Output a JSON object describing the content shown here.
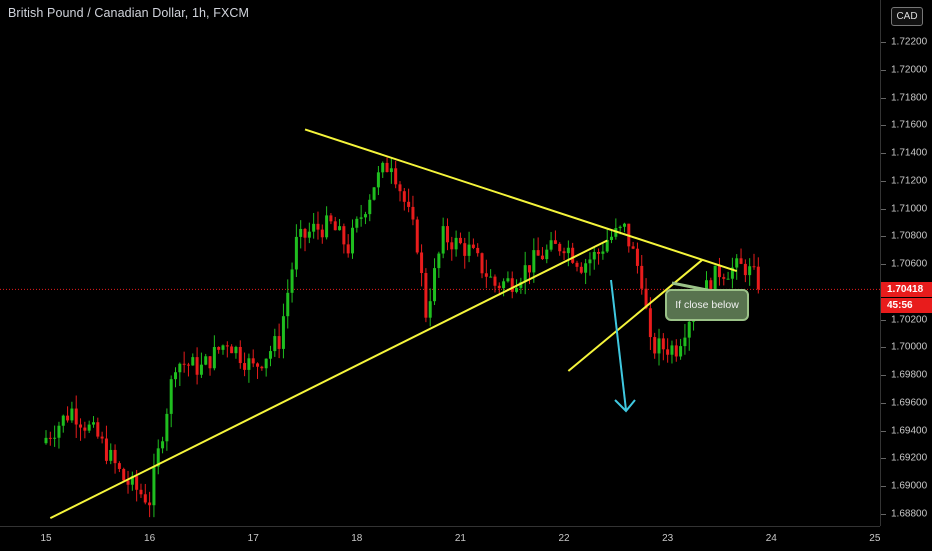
{
  "header": {
    "title": "British Pound / Canadian Dollar, 1h, FXCM"
  },
  "price_axis": {
    "currency": "CAD",
    "labels": [
      "1.72200",
      "1.72000",
      "1.71800",
      "1.71600",
      "1.71400",
      "1.71200",
      "1.71000",
      "1.70800",
      "1.70600",
      "1.70400",
      "1.70200",
      "1.70000",
      "1.69800",
      "1.69600",
      "1.69400",
      "1.69200",
      "1.69000",
      "1.68800"
    ],
    "values": [
      1.722,
      1.72,
      1.718,
      1.716,
      1.714,
      1.712,
      1.71,
      1.708,
      1.706,
      1.704,
      1.702,
      1.7,
      1.698,
      1.696,
      1.694,
      1.692,
      1.69,
      1.688
    ],
    "current_price": "1.70418",
    "current_price_value": 1.70418,
    "countdown": "45:56"
  },
  "time_axis": {
    "labels": [
      "15",
      "16",
      "17",
      "18",
      "21",
      "22",
      "23",
      "24",
      "25"
    ],
    "bar_index": [
      0,
      24,
      48,
      72,
      96,
      120,
      144,
      168,
      192
    ]
  },
  "annotation": {
    "callout_text": "If close below",
    "colors": {
      "trendline": "#f5f53b",
      "arrow": "#3fc8e0",
      "callout_bg": "#58734f",
      "callout_border": "#9bc288"
    }
  },
  "colors": {
    "background": "#000000",
    "up_candle": "#1fbe1f",
    "down_candle": "#e81c1c",
    "price_tag": "#e81c1c"
  },
  "chart_data": {
    "type": "candlestick",
    "title": "British Pound / Canadian Dollar, 1h, FXCM",
    "timeframe": "1h",
    "x_tick_labels": [
      "15",
      "16",
      "17",
      "18",
      "21",
      "22",
      "23",
      "24",
      "25"
    ],
    "ylim": [
      1.6875,
      1.7235
    ],
    "current_price": 1.70418,
    "anchor_closes": [
      [
        0,
        1.6935
      ],
      [
        6,
        1.6955
      ],
      [
        12,
        1.6935
      ],
      [
        18,
        1.6905
      ],
      [
        24,
        1.689
      ],
      [
        30,
        1.699
      ],
      [
        36,
        1.6985
      ],
      [
        42,
        1.7005
      ],
      [
        48,
        1.6985
      ],
      [
        54,
        1.7005
      ],
      [
        58,
        1.7075
      ],
      [
        62,
        1.7085
      ],
      [
        66,
        1.7088
      ],
      [
        70,
        1.7072
      ],
      [
        76,
        1.7118
      ],
      [
        80,
        1.7135
      ],
      [
        86,
        1.7075
      ],
      [
        88,
        1.7025
      ],
      [
        92,
        1.708
      ],
      [
        98,
        1.707
      ],
      [
        104,
        1.7045
      ],
      [
        108,
        1.7048
      ],
      [
        114,
        1.7065
      ],
      [
        120,
        1.7075
      ],
      [
        124,
        1.706
      ],
      [
        128,
        1.7068
      ],
      [
        130,
        1.7078
      ],
      [
        134,
        1.7085
      ],
      [
        138,
        1.705
      ],
      [
        140,
        1.7
      ],
      [
        146,
        1.7
      ],
      [
        150,
        1.703
      ],
      [
        156,
        1.7055
      ],
      [
        162,
        1.7058
      ],
      [
        165,
        1.7047
      ]
    ],
    "trendlines": [
      {
        "name": "upper",
        "from": [
          60,
          1.7157
        ],
        "to": [
          160,
          1.7055
        ]
      },
      {
        "name": "lower",
        "from": [
          1,
          1.6877
        ],
        "to": [
          130,
          1.7077
        ]
      },
      {
        "name": "flag",
        "from": [
          121,
          1.6983
        ],
        "to": [
          152,
          1.7063
        ]
      }
    ]
  }
}
